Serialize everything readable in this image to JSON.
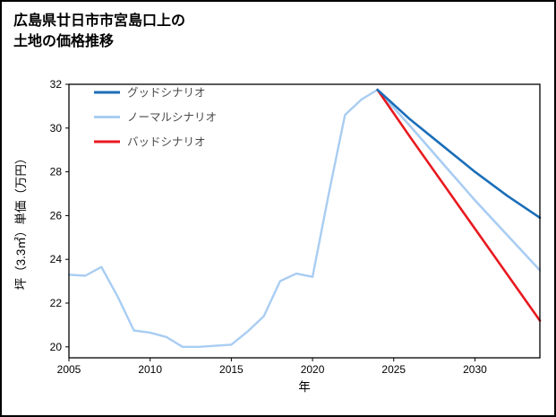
{
  "title": {
    "line1": "広島県廿日市市宮島口上の",
    "line2": "土地の価格推移"
  },
  "chart_data": {
    "type": "line",
    "title": "広島県廿日市市宮島口上の土地の価格推移",
    "xlabel": "年",
    "ylabel": "坪（3.3㎡）単価（万円）",
    "xlim": [
      2005,
      2034
    ],
    "ylim": [
      19.5,
      32
    ],
    "xticks": [
      2005,
      2010,
      2015,
      2020,
      2025,
      2030
    ],
    "yticks": [
      20,
      22,
      24,
      26,
      28,
      30,
      32
    ],
    "grid": false,
    "legend_position": "upper-left",
    "axis_color": "#000000",
    "legend_text_color": "#4a4a4a",
    "legend": [
      {
        "key": "good",
        "label": "グッドシナリオ",
        "color": "#1b6eb8"
      },
      {
        "key": "normal",
        "label": "ノーマルシナリオ",
        "color": "#a9cdf2"
      },
      {
        "key": "bad",
        "label": "バッドシナリオ",
        "color": "#e8191f"
      }
    ],
    "series": [
      {
        "name": "history",
        "color": "#a9cdf2",
        "width": 2.4,
        "x": [
          2005,
          2006,
          2007,
          2008,
          2009,
          2010,
          2011,
          2012,
          2013,
          2014,
          2015,
          2016,
          2017,
          2018,
          2019,
          2020,
          2021,
          2022,
          2023,
          2024
        ],
        "y": [
          23.3,
          23.25,
          23.65,
          22.3,
          20.75,
          20.65,
          20.45,
          20.0,
          20.0,
          20.05,
          20.1,
          20.7,
          21.4,
          23.0,
          23.35,
          23.2,
          27.0,
          30.6,
          31.3,
          31.75
        ]
      },
      {
        "name": "normal",
        "color": "#a9cdf2",
        "width": 2.6,
        "x": [
          2024,
          2026,
          2028,
          2030,
          2032,
          2034
        ],
        "y": [
          31.75,
          30.1,
          28.4,
          26.7,
          25.1,
          23.5
        ]
      },
      {
        "name": "bad",
        "color": "#e8191f",
        "width": 2.6,
        "x": [
          2024,
          2026,
          2028,
          2030,
          2032,
          2034
        ],
        "y": [
          31.75,
          29.6,
          27.5,
          25.4,
          23.3,
          21.2
        ]
      },
      {
        "name": "good",
        "color": "#1b6eb8",
        "width": 2.6,
        "x": [
          2024,
          2026,
          2028,
          2030,
          2032,
          2034
        ],
        "y": [
          31.75,
          30.4,
          29.2,
          28.0,
          26.9,
          25.9
        ]
      }
    ]
  }
}
